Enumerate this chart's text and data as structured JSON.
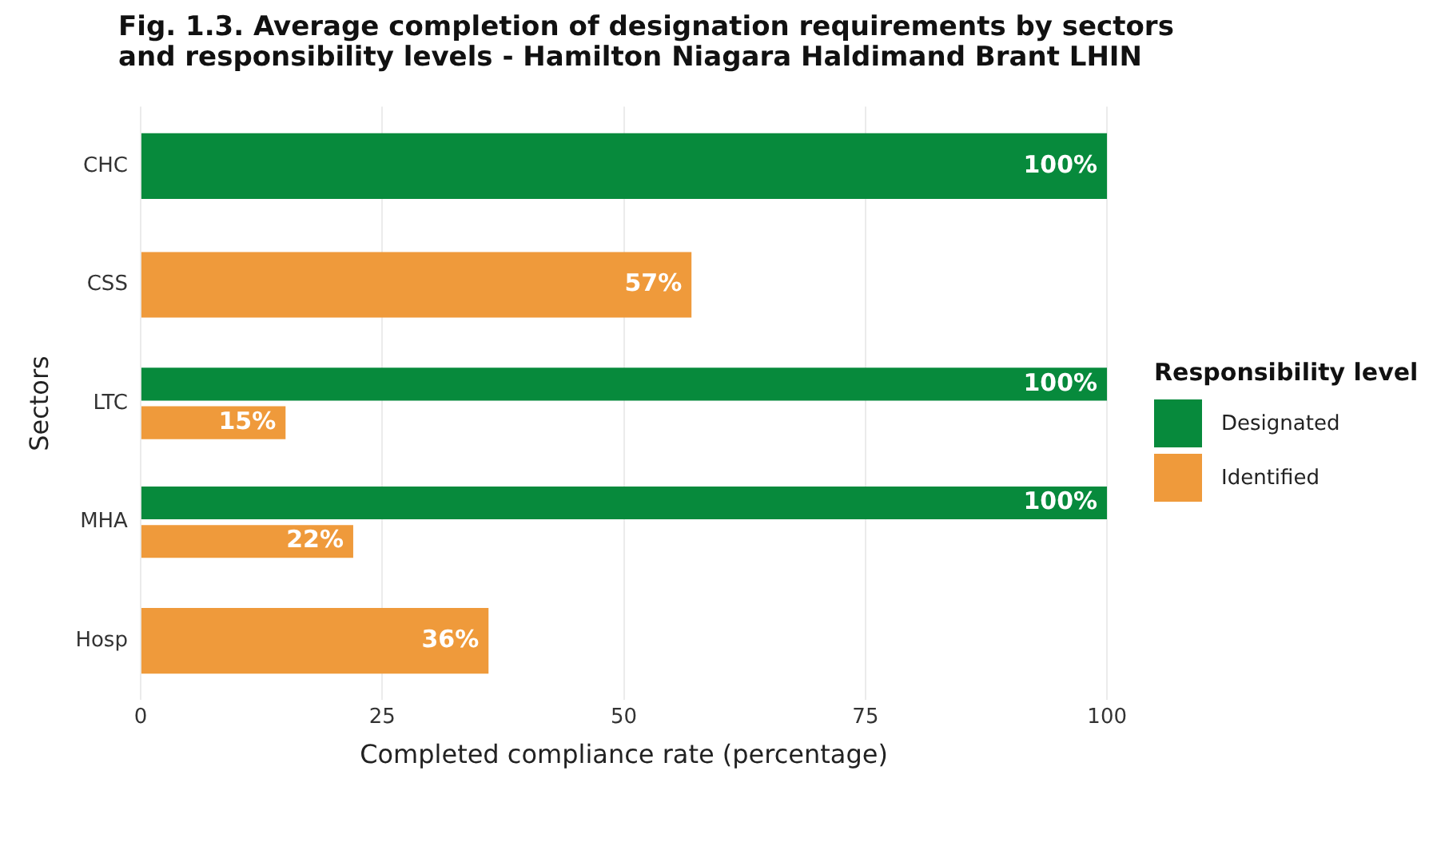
{
  "chart_data": {
    "type": "bar",
    "orientation": "horizontal",
    "title": "Fig. 1.3. Average completion of designation requirements by sectors and responsibility levels - Hamilton Niagara Haldimand Brant LHIN",
    "xlabel": "Completed compliance rate (percentage)",
    "ylabel": "Sectors",
    "legend_title": "Responsibility level",
    "categories": [
      "CHC",
      "CSS",
      "LTC",
      "MHA",
      "Hosp"
    ],
    "series": [
      {
        "name": "Designated",
        "color": "#078a3c",
        "values": [
          100,
          null,
          100,
          100,
          null
        ],
        "value_labels": [
          "100%",
          null,
          "100%",
          "100%",
          null
        ]
      },
      {
        "name": "Identified",
        "color": "#ef9a3b",
        "values": [
          null,
          57,
          15,
          22,
          36
        ],
        "value_labels": [
          null,
          "57%",
          "15%",
          "22%",
          "36%"
        ]
      }
    ],
    "xlim": [
      0,
      100
    ],
    "xticks": [
      0,
      25,
      50,
      75,
      100
    ],
    "grid": "x",
    "legend": "right"
  }
}
